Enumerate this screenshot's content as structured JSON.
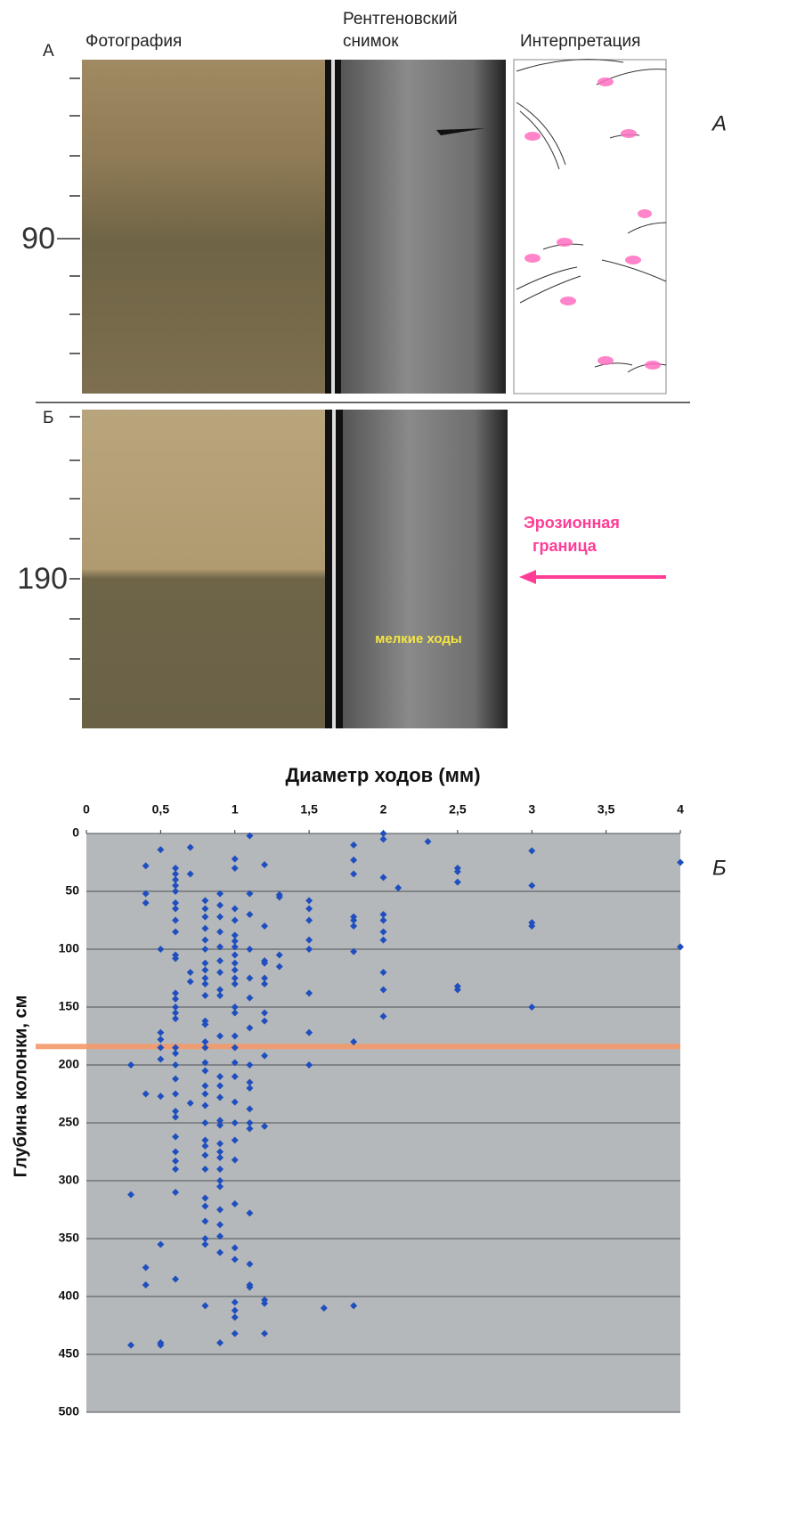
{
  "core_panels": {
    "panel_a_letter": "А",
    "photo_header": "Фотография",
    "xray_header": [
      "Рентгеновский",
      "снимок"
    ],
    "interp_header": "Интерпретация",
    "panel_a_depth_label": "90",
    "panel_a_side_letter": "А",
    "panel_b_letter": "Б",
    "panel_b_depth_label": "190",
    "erosion_label": [
      "Эрозионная",
      "граница"
    ],
    "burrows_label": "мелкие ходы"
  },
  "chart_data": {
    "type": "scatter",
    "title": "Диаметр ходов (мм)",
    "y_label": "Глубина колонки, см",
    "side_letter": "Б",
    "color": "#1f4fbf",
    "background": "#b5b8bb",
    "grid": true,
    "y_inverted": true,
    "reference_line": {
      "y": 184,
      "color": "#f59a6a"
    },
    "xlim": [
      0,
      4
    ],
    "xticks": [
      0,
      {
        "value": 0.5,
        "label": "0,5"
      },
      1,
      {
        "value": 1.5,
        "label": "1,5"
      },
      2,
      {
        "value": 2.5,
        "label": "2,5"
      },
      3,
      {
        "value": 3.5,
        "label": "3,5"
      },
      4
    ],
    "ylim": [
      0,
      500
    ],
    "yticks": [
      0,
      50,
      100,
      150,
      200,
      250,
      300,
      350,
      400,
      450,
      500
    ],
    "x": [
      0.3,
      0.3,
      0.3,
      0.4,
      0.4,
      0.4,
      0.4,
      0.4,
      0.4,
      0.5,
      0.5,
      0.5,
      0.5,
      0.5,
      0.5,
      0.5,
      0.5,
      0.5,
      0.5,
      0.6,
      0.6,
      0.6,
      0.6,
      0.6,
      0.6,
      0.6,
      0.6,
      0.6,
      0.6,
      0.6,
      0.6,
      0.6,
      0.6,
      0.6,
      0.6,
      0.6,
      0.6,
      0.6,
      0.6,
      0.6,
      0.6,
      0.6,
      0.6,
      0.6,
      0.6,
      0.6,
      0.6,
      0.6,
      0.7,
      0.7,
      0.7,
      0.7,
      0.7,
      0.8,
      0.8,
      0.8,
      0.8,
      0.8,
      0.8,
      0.8,
      0.8,
      0.8,
      0.8,
      0.8,
      0.8,
      0.8,
      0.8,
      0.8,
      0.8,
      0.8,
      0.8,
      0.8,
      0.8,
      0.8,
      0.8,
      0.8,
      0.8,
      0.8,
      0.8,
      0.8,
      0.8,
      0.8,
      0.8,
      0.8,
      0.9,
      0.9,
      0.9,
      0.9,
      0.9,
      0.9,
      0.9,
      0.9,
      0.9,
      0.9,
      0.9,
      0.9,
      0.9,
      0.9,
      0.9,
      0.9,
      0.9,
      0.9,
      0.9,
      0.9,
      0.9,
      0.9,
      0.9,
      0.9,
      0.9,
      0.9,
      1.0,
      1.0,
      1.0,
      1.0,
      1.0,
      1.0,
      1.0,
      1.0,
      1.0,
      1.0,
      1.0,
      1.0,
      1.0,
      1.0,
      1.0,
      1.0,
      1.0,
      1.0,
      1.0,
      1.0,
      1.0,
      1.0,
      1.0,
      1.0,
      1.0,
      1.0,
      1.0,
      1.0,
      1.0,
      1.1,
      1.1,
      1.1,
      1.1,
      1.1,
      1.1,
      1.1,
      1.1,
      1.1,
      1.1,
      1.1,
      1.1,
      1.1,
      1.1,
      1.1,
      1.1,
      1.1,
      1.2,
      1.2,
      1.2,
      1.2,
      1.2,
      1.2,
      1.2,
      1.2,
      1.2,
      1.2,
      1.2,
      1.2,
      1.2,
      1.3,
      1.3,
      1.3,
      1.3,
      1.5,
      1.5,
      1.5,
      1.5,
      1.5,
      1.5,
      1.5,
      1.5,
      1.6,
      1.8,
      1.8,
      1.8,
      1.8,
      1.8,
      1.8,
      1.8,
      1.8,
      1.8,
      2.0,
      2.0,
      2.0,
      2.0,
      2.0,
      2.0,
      2.0,
      2.0,
      2.0,
      2.0,
      2.1,
      2.3,
      2.5,
      2.5,
      2.5,
      2.5,
      2.5,
      3.0,
      3.0,
      3.0,
      3.0,
      3.0,
      4.0,
      4.0
    ],
    "values": [
      200,
      312,
      442,
      28,
      52,
      60,
      225,
      375,
      390,
      14,
      100,
      172,
      178,
      185,
      195,
      227,
      355,
      440,
      442,
      30,
      35,
      40,
      45,
      50,
      60,
      65,
      75,
      85,
      105,
      108,
      138,
      143,
      150,
      155,
      160,
      185,
      190,
      200,
      212,
      225,
      240,
      245,
      262,
      275,
      283,
      290,
      310,
      385,
      12,
      35,
      120,
      128,
      233,
      58,
      65,
      72,
      82,
      92,
      100,
      112,
      118,
      125,
      130,
      140,
      162,
      165,
      180,
      185,
      198,
      205,
      218,
      225,
      235,
      250,
      265,
      270,
      278,
      290,
      315,
      322,
      335,
      350,
      355,
      408,
      52,
      62,
      72,
      85,
      98,
      110,
      120,
      135,
      140,
      175,
      210,
      218,
      228,
      248,
      252,
      268,
      275,
      280,
      290,
      300,
      305,
      325,
      338,
      348,
      362,
      440,
      22,
      30,
      65,
      75,
      88,
      93,
      98,
      105,
      112,
      118,
      125,
      130,
      150,
      155,
      175,
      185,
      198,
      210,
      232,
      250,
      265,
      282,
      320,
      358,
      368,
      405,
      412,
      418,
      432,
      2,
      52,
      70,
      100,
      125,
      142,
      168,
      200,
      215,
      220,
      238,
      250,
      255,
      328,
      372,
      390,
      392,
      27,
      80,
      110,
      112,
      125,
      130,
      155,
      162,
      192,
      253,
      403,
      406,
      432,
      53,
      55,
      105,
      115,
      58,
      65,
      75,
      92,
      100,
      138,
      172,
      200,
      410,
      10,
      23,
      35,
      72,
      75,
      80,
      102,
      180,
      408,
      0,
      5,
      38,
      70,
      75,
      85,
      92,
      120,
      135,
      158,
      47,
      7,
      30,
      33,
      42,
      132,
      135,
      15,
      45,
      77,
      80,
      150,
      25,
      98
    ]
  }
}
